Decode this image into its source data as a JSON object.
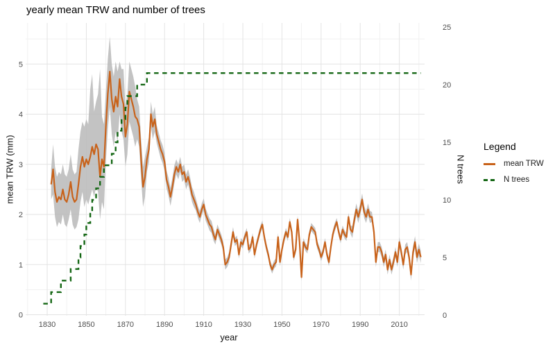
{
  "title": "yearly mean TRW and number of trees",
  "legend": {
    "title": "Legend",
    "items": [
      {
        "label": "mean TRW",
        "color": "#C8621A",
        "style": "solid"
      },
      {
        "label": "N trees",
        "color": "#136613",
        "style": "dashed"
      }
    ]
  },
  "colors": {
    "trw_line": "#C8621A",
    "ntrees_line": "#136613",
    "ribbon": "#B8B8B8",
    "grid_major": "#E3E3E3",
    "grid_minor": "#F1F1F1",
    "tick_text": "#4d4d4d"
  },
  "chart_data": {
    "type": "line",
    "title": "yearly mean TRW and number of trees",
    "xlabel": "year",
    "ylabel_left": "mean TRW (mm)",
    "ylabel_right": "N trees",
    "grid": true,
    "legend_position": "right",
    "xlim": [
      1819,
      2022.9
    ],
    "ylim_left": [
      -0.02,
      5.82
    ],
    "ylim_right": [
      -0.05,
      25.35
    ],
    "x_ticks": [
      1830,
      1850,
      1870,
      1890,
      1910,
      1930,
      1950,
      1970,
      1990,
      2010
    ],
    "x_minor_ticks": [
      1820,
      1840,
      1860,
      1880,
      1900,
      1920,
      1940,
      1960,
      1980,
      2000,
      2020
    ],
    "y_left_ticks": [
      0,
      1,
      2,
      3,
      4,
      5
    ],
    "y_left_minor_ticks": [
      0.5,
      1.5,
      2.5,
      3.5,
      4.5,
      5.5
    ],
    "y_right_ticks": [
      0,
      5,
      10,
      15,
      20,
      25
    ],
    "series": [
      {
        "name": "mean TRW",
        "type": "line",
        "axis": "left",
        "start_year": 1832,
        "values": [
          2.6,
          2.9,
          2.45,
          2.25,
          2.35,
          2.3,
          2.5,
          2.3,
          2.25,
          2.4,
          2.65,
          2.35,
          2.25,
          2.3,
          2.6,
          2.95,
          3.15,
          2.95,
          3.1,
          3.0,
          3.15,
          3.35,
          3.2,
          3.4,
          3.3,
          2.75,
          3.1,
          2.95,
          3.75,
          4.4,
          4.85,
          4.3,
          4.05,
          4.35,
          4.15,
          4.7,
          4.35,
          4.2,
          3.55,
          3.8,
          4.45,
          4.3,
          4.15,
          3.95,
          3.9,
          3.75,
          3.1,
          2.55,
          2.75,
          3.1,
          3.3,
          4.0,
          3.75,
          3.9,
          3.6,
          3.45,
          3.3,
          3.2,
          3.05,
          2.7,
          2.55,
          2.35,
          2.55,
          2.8,
          2.95,
          2.85,
          3.0,
          2.8,
          2.85,
          2.65,
          2.75,
          2.6,
          2.4,
          2.3,
          2.2,
          2.05,
          1.95,
          2.1,
          2.2,
          2.0,
          1.9,
          1.8,
          1.75,
          1.6,
          1.5,
          1.7,
          1.6,
          1.5,
          1.35,
          1.0,
          1.05,
          1.15,
          1.4,
          1.65,
          1.45,
          1.5,
          1.2,
          1.45,
          1.4,
          1.55,
          1.65,
          1.3,
          1.35,
          1.55,
          1.2,
          1.4,
          1.55,
          1.7,
          1.8,
          1.55,
          1.35,
          1.2,
          1.0,
          0.9,
          1.0,
          1.05,
          1.55,
          1.05,
          1.3,
          1.5,
          1.65,
          1.55,
          1.85,
          1.65,
          1.15,
          1.3,
          1.9,
          1.45,
          0.75,
          1.45,
          1.35,
          1.3,
          1.6,
          1.75,
          1.7,
          1.65,
          1.4,
          1.3,
          1.15,
          1.25,
          1.45,
          1.2,
          1.05,
          1.35,
          1.6,
          1.75,
          1.85,
          1.65,
          1.5,
          1.7,
          1.6,
          1.55,
          1.95,
          1.7,
          1.65,
          1.9,
          2.1,
          1.95,
          2.1,
          2.3,
          2.05,
          1.95,
          2.1,
          1.95,
          1.95,
          1.65,
          1.05,
          1.35,
          1.35,
          1.25,
          1.05,
          1.2,
          0.9,
          1.1,
          0.9,
          1.05,
          1.25,
          1.05,
          1.45,
          1.25,
          1.0,
          1.3,
          1.35,
          1.15,
          0.8,
          1.25,
          1.45,
          1.15,
          1.3,
          1.15
        ]
      },
      {
        "name": "mean TRW ribbon",
        "type": "band",
        "axis": "left",
        "se_breakpoints": [
          [
            1832,
            0.3
          ],
          [
            1833,
            0.5
          ],
          [
            1842,
            0.55
          ],
          [
            1846,
            0.7
          ],
          [
            1849,
            0.8
          ],
          [
            1853,
            0.85
          ],
          [
            1860,
            0.7
          ],
          [
            1870,
            0.6
          ],
          [
            1876,
            0.4
          ],
          [
            1881,
            0.25
          ],
          [
            1886,
            0.18
          ],
          [
            1896,
            0.15
          ],
          [
            1906,
            0.12
          ],
          [
            1916,
            0.1
          ],
          [
            1926,
            0.08
          ],
          [
            1986,
            0.12
          ],
          [
            1996,
            0.1
          ],
          [
            2016,
            0.12
          ]
        ],
        "upper_overrides": {
          "1852": 4.5,
          "1853": 4.8,
          "1856": 4.4,
          "1857": 4.9,
          "1862": 5.55,
          "1867": 5.05,
          "1868": 4.9
        }
      },
      {
        "name": "N trees",
        "type": "step",
        "axis": "right",
        "dashed": true,
        "points": [
          [
            1828,
            1
          ],
          [
            1832,
            2
          ],
          [
            1837,
            3
          ],
          [
            1842,
            4
          ],
          [
            1846,
            5
          ],
          [
            1847,
            6
          ],
          [
            1849,
            7
          ],
          [
            1850,
            8
          ],
          [
            1852,
            9
          ],
          [
            1853,
            10
          ],
          [
            1855,
            11
          ],
          [
            1857,
            12
          ],
          [
            1859,
            13
          ],
          [
            1863,
            14
          ],
          [
            1865,
            15
          ],
          [
            1866,
            16
          ],
          [
            1868,
            17
          ],
          [
            1870,
            18
          ],
          [
            1871,
            19
          ],
          [
            1876,
            20
          ],
          [
            1881,
            21
          ],
          [
            2021,
            21
          ]
        ]
      }
    ]
  }
}
